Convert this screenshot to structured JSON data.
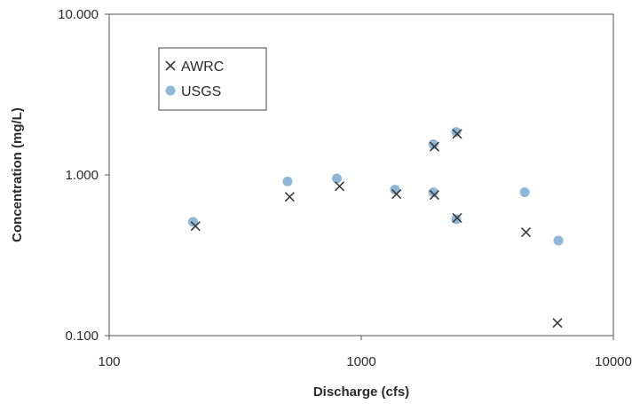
{
  "chart_data": {
    "type": "scatter",
    "title": "",
    "xlabel": "Discharge (cfs)",
    "ylabel": "Concentration (mg/L)",
    "x_scale": "log",
    "y_scale": "log",
    "xlim": [
      100,
      10000
    ],
    "ylim": [
      0.1,
      10
    ],
    "x_ticks": [
      {
        "value": 100,
        "label": "100"
      },
      {
        "value": 1000,
        "label": "1000"
      },
      {
        "value": 10000,
        "label": "10000"
      }
    ],
    "y_ticks": [
      {
        "value": 0.1,
        "label": "0.100"
      },
      {
        "value": 1,
        "label": "1.000"
      },
      {
        "value": 10,
        "label": "10.000"
      }
    ],
    "grid": false,
    "legend_position": "top-left",
    "series": [
      {
        "name": "AWRC",
        "marker": "x",
        "color": "#3a3a3a",
        "points": [
          {
            "x": 220,
            "y": 0.48
          },
          {
            "x": 520,
            "y": 0.73
          },
          {
            "x": 820,
            "y": 0.85
          },
          {
            "x": 1380,
            "y": 0.76
          },
          {
            "x": 1950,
            "y": 1.5
          },
          {
            "x": 1950,
            "y": 0.75
          },
          {
            "x": 2400,
            "y": 1.8
          },
          {
            "x": 2400,
            "y": 0.54
          },
          {
            "x": 4500,
            "y": 0.44
          },
          {
            "x": 6000,
            "y": 0.12
          }
        ]
      },
      {
        "name": "USGS",
        "marker": "circle",
        "color": "#8fb8d8",
        "points": [
          {
            "x": 215,
            "y": 0.51
          },
          {
            "x": 510,
            "y": 0.91
          },
          {
            "x": 800,
            "y": 0.95
          },
          {
            "x": 1360,
            "y": 0.81
          },
          {
            "x": 1930,
            "y": 1.55
          },
          {
            "x": 1930,
            "y": 0.78
          },
          {
            "x": 2380,
            "y": 1.85
          },
          {
            "x": 2380,
            "y": 0.53
          },
          {
            "x": 4450,
            "y": 0.78
          },
          {
            "x": 6050,
            "y": 0.39
          }
        ]
      }
    ]
  }
}
